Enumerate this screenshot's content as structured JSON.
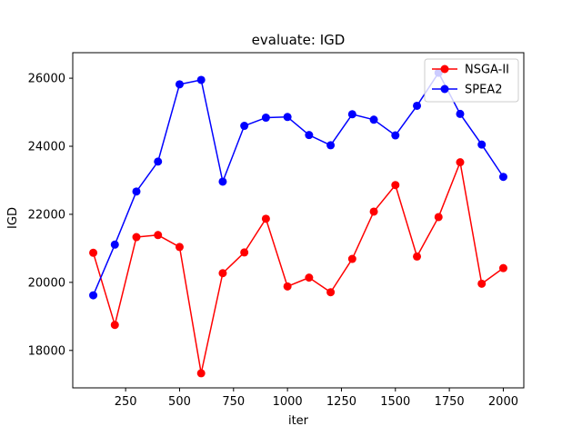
{
  "chart_data": {
    "type": "line",
    "title": "evaluate: IGD",
    "xlabel": "iter",
    "ylabel": "IGD",
    "xlim": [
      5,
      2095
    ],
    "ylim": [
      16900,
      26750
    ],
    "xticks": [
      250,
      500,
      750,
      1000,
      1250,
      1500,
      1750,
      2000
    ],
    "yticks": [
      18000,
      20000,
      22000,
      24000,
      26000
    ],
    "grid": false,
    "legend": "top-right",
    "x": [
      100,
      200,
      300,
      400,
      500,
      600,
      700,
      800,
      900,
      1000,
      1100,
      1200,
      1300,
      1400,
      1500,
      1600,
      1700,
      1800,
      1900,
      2000
    ],
    "series": [
      {
        "name": "NSGA-II",
        "color": "#ff0000",
        "marker": "circle",
        "values": [
          20870,
          18750,
          21330,
          21390,
          21040,
          17330,
          20270,
          20880,
          21870,
          19880,
          20140,
          19710,
          20690,
          22080,
          22860,
          20760,
          21920,
          23530,
          19960,
          20420
        ]
      },
      {
        "name": "SPEA2",
        "color": "#0000ff",
        "marker": "circle",
        "values": [
          19620,
          21110,
          22670,
          23550,
          25820,
          25950,
          22960,
          24600,
          24840,
          24860,
          24330,
          24030,
          24940,
          24780,
          24320,
          25190,
          26160,
          24950,
          24050,
          23100
        ]
      }
    ]
  }
}
